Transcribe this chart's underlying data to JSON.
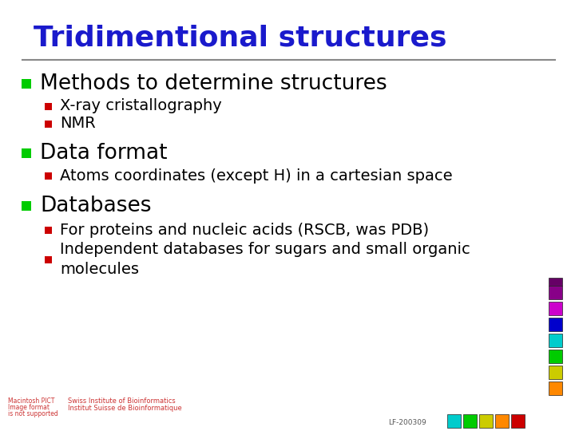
{
  "title": "Tridimentional structures",
  "title_color": "#1a1acc",
  "title_fontsize": 26,
  "separator_color": "#888888",
  "bg_color": "#ffffff",
  "bullet_l1_color": "#00cc00",
  "bullet_l2_color": "#cc0000",
  "text_color": "#000000",
  "items": [
    {
      "level": 1,
      "text": "Methods to determine structures"
    },
    {
      "level": 2,
      "text": "X-ray cristallography"
    },
    {
      "level": 2,
      "text": "NMR"
    },
    {
      "level": 1,
      "text": "Data format"
    },
    {
      "level": 2,
      "text": "Atoms coordinates (except H) in a cartesian space"
    },
    {
      "level": 1,
      "text": "Databases"
    },
    {
      "level": 2,
      "text": "For proteins and nucleic acids (RSCB, was PDB)"
    },
    {
      "level": 2,
      "text": "Independent databases for sugars and small organic\nmolecules"
    }
  ],
  "l1_fontsize": 19,
  "l2_fontsize": 14,
  "footer_left_line1": "Macintosh PICT",
  "footer_left_line2": "Image format",
  "footer_left_line3": "is not supported",
  "footer_institute1": "Swiss Institute of Bioinformatics",
  "footer_institute2": "Institut Suisse de Bioinformatique",
  "footer_code": "LF-200309",
  "side_colors_vertical": [
    "#880088",
    "#cc00cc",
    "#0000cc",
    "#00cccc",
    "#00cc00",
    "#cccc00",
    "#ff8800"
  ],
  "bottom_colors": [
    "#00cccc",
    "#00cc00",
    "#cccc00",
    "#ff8800",
    "#cc0000"
  ],
  "top_side_color": "#660066"
}
